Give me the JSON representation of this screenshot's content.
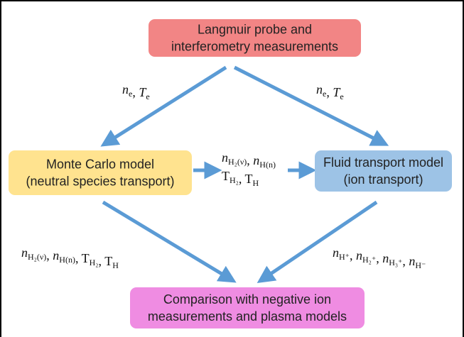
{
  "nodes": [
    {
      "lines": [
        "Langmuir probe and",
        "interferometry  measurements"
      ]
    },
    {
      "lines": [
        "Monte Carlo model",
        "(neutral species transport)"
      ]
    },
    {
      "lines": [
        "Fluid transport model",
        "(ion transport)"
      ]
    },
    {
      "lines": [
        "Comparison with negative ion",
        "measurements  and plasma models"
      ]
    }
  ],
  "edge_labels": [
    {
      "lines": [
        [
          {
            "base": "n",
            "sub": "e",
            "italic": true
          },
          {
            "base": ", "
          },
          {
            "base": "T",
            "sub": "e",
            "italic": true
          }
        ]
      ]
    },
    {
      "lines": [
        [
          {
            "base": "n",
            "sub": "e",
            "italic": true
          },
          {
            "base": ", "
          },
          {
            "base": "T",
            "sub": "e",
            "italic": true
          }
        ]
      ]
    },
    {
      "lines": [
        [
          {
            "base": "n",
            "sub": "H₂(ν)",
            "italic": true
          },
          {
            "base": ", "
          },
          {
            "base": "n",
            "sub": "H(n)",
            "italic": true
          }
        ],
        [
          {
            "base": "T",
            "sub": "H₂"
          },
          {
            "base": ", "
          },
          {
            "base": "T",
            "sub": "H"
          }
        ]
      ]
    },
    {
      "lines": [
        [
          {
            "base": "n",
            "sub": "H₂(ν)",
            "italic": true
          },
          {
            "base": ", "
          },
          {
            "base": "n",
            "sub": "H(n)",
            "italic": true
          },
          {
            "base": ", "
          },
          {
            "base": "T",
            "sub": "H₂"
          },
          {
            "base": ", "
          },
          {
            "base": "T",
            "sub": "H"
          }
        ]
      ]
    },
    {
      "lines": [
        [
          {
            "base": "n",
            "sub": "H⁺",
            "italic": true
          },
          {
            "base": ", "
          },
          {
            "base": "n",
            "sub": "H₂⁺",
            "italic": true
          },
          {
            "base": ", "
          },
          {
            "base": "n",
            "sub": "H₃⁺",
            "italic": true
          },
          {
            "base": ", "
          },
          {
            "base": "n",
            "sub": "H⁻",
            "italic": true
          }
        ]
      ]
    }
  ]
}
